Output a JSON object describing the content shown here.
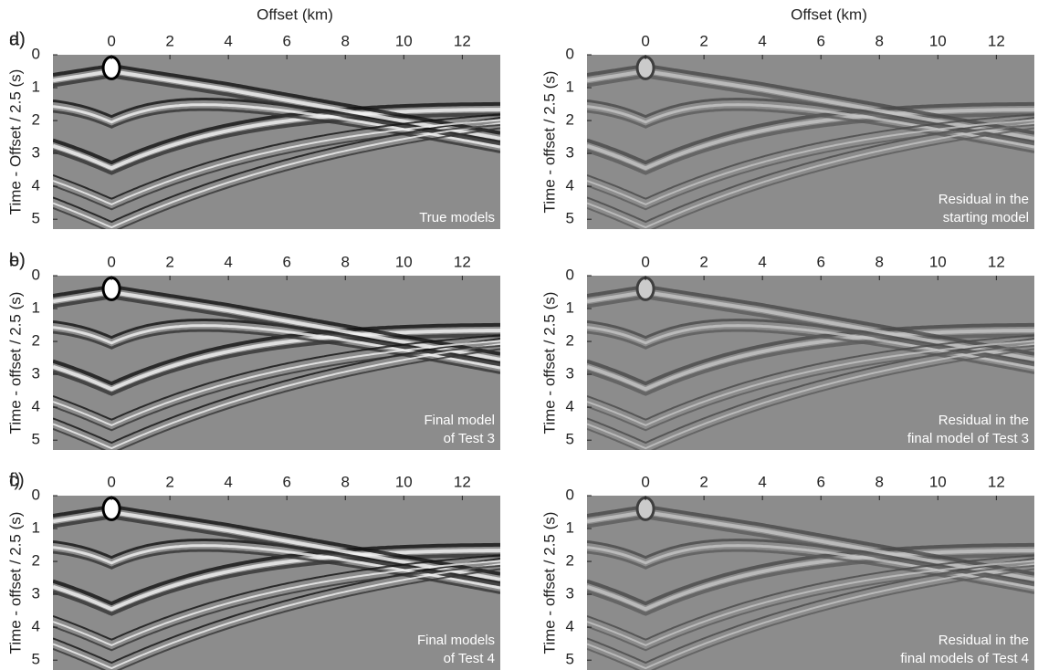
{
  "chart_data": [
    {
      "type": "seismic",
      "panel": "a)",
      "xlabel": "Offset (km)",
      "ylabel": "Time - Offset / 2.5 (s)",
      "annotation": [
        "True models"
      ],
      "xlim": [
        -2,
        13.3
      ],
      "xticks": [
        0,
        2,
        4,
        6,
        8,
        10,
        12
      ],
      "ylim": [
        0,
        5.3
      ],
      "yticks": [
        0,
        1,
        2,
        3,
        4,
        5
      ]
    },
    {
      "type": "seismic",
      "panel": "b)",
      "ylabel": "Time - offset / 2.5 (s)",
      "annotation": [
        "Final model",
        "of Test 3"
      ],
      "xlim": [
        -2,
        13.3
      ],
      "xticks": [
        0,
        2,
        4,
        6,
        8,
        10,
        12
      ],
      "ylim": [
        0,
        5.3
      ],
      "yticks": [
        0,
        1,
        2,
        3,
        4,
        5
      ]
    },
    {
      "type": "seismic",
      "panel": "c)",
      "ylabel": "Time - offset / 2.5 (s)",
      "annotation": [
        "Final models",
        "of Test 4"
      ],
      "xlim": [
        -2,
        13.3
      ],
      "xticks": [
        0,
        2,
        4,
        6,
        8,
        10,
        12
      ],
      "ylim": [
        0,
        5.3
      ],
      "yticks": [
        0,
        1,
        2,
        3,
        4,
        5
      ]
    },
    {
      "type": "seismic",
      "panel": "d)",
      "xlabel": "Offset (km)",
      "ylabel": "Time - offset / 2.5 (s)",
      "annotation": [
        "Residual in the",
        "starting model"
      ],
      "xlim": [
        -2,
        13.3
      ],
      "xticks": [
        0,
        2,
        4,
        6,
        8,
        10,
        12
      ],
      "ylim": [
        0,
        5.3
      ],
      "yticks": [
        0,
        1,
        2,
        3,
        4,
        5
      ]
    },
    {
      "type": "seismic",
      "panel": "e)",
      "ylabel": "Time - offset / 2.5 (s)",
      "annotation": [
        "Residual in the",
        "final model of Test 3"
      ],
      "xlim": [
        -2,
        13.3
      ],
      "xticks": [
        0,
        2,
        4,
        6,
        8,
        10,
        12
      ],
      "ylim": [
        0,
        5.3
      ],
      "yticks": [
        0,
        1,
        2,
        3,
        4,
        5
      ]
    },
    {
      "type": "seismic",
      "panel": "f)",
      "ylabel": "Time - offset / 2.5 (s)",
      "annotation": [
        "Residual in the",
        "final models of Test 4"
      ],
      "xlim": [
        -2,
        13.3
      ],
      "xticks": [
        0,
        2,
        4,
        6,
        8,
        10,
        12
      ],
      "ylim": [
        0,
        5.3
      ],
      "yticks": [
        0,
        1,
        2,
        3,
        4,
        5
      ]
    }
  ]
}
